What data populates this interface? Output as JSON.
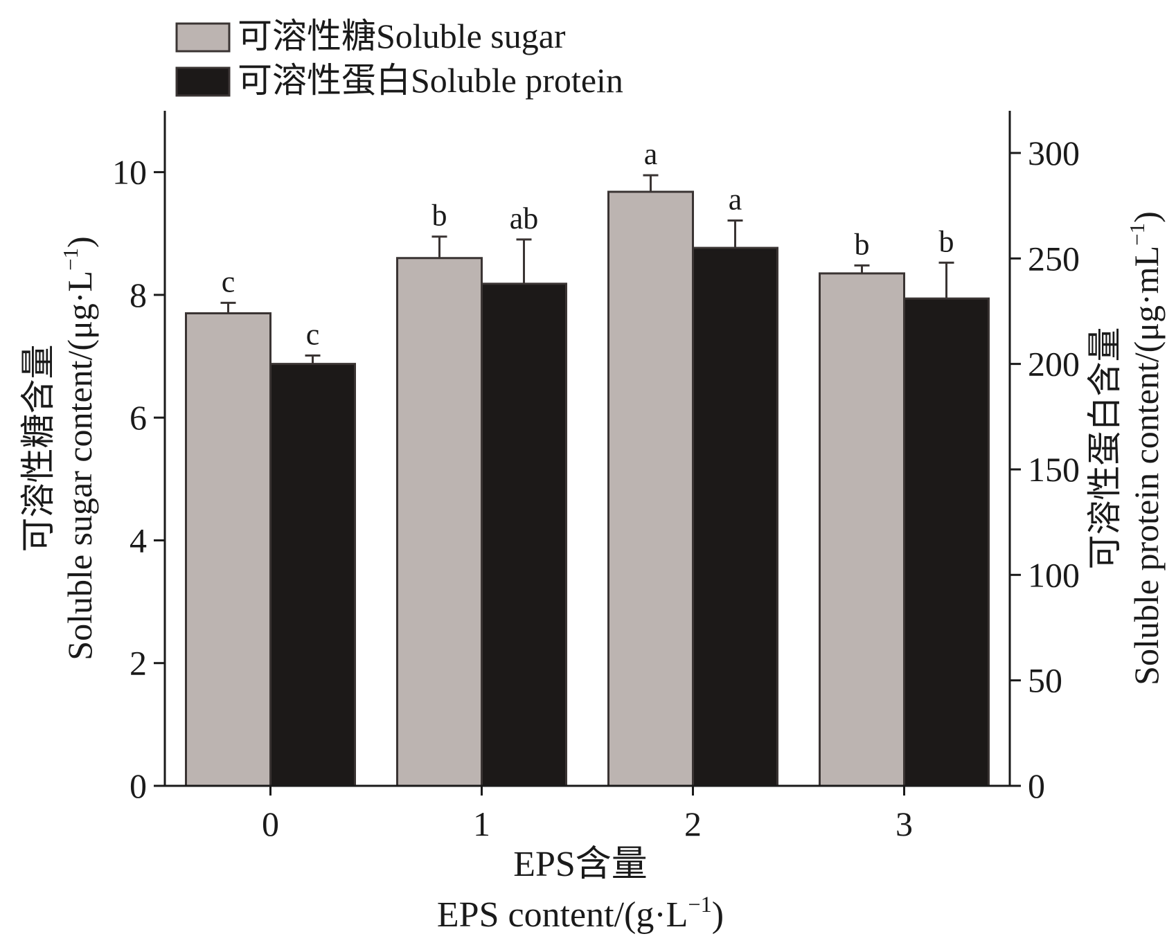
{
  "chart_data": {
    "type": "bar",
    "categories": [
      "0",
      "1",
      "2",
      "3"
    ],
    "xlabel_line1": "EPS含量",
    "xlabel_line2_main": "EPS content/(g·L",
    "xlabel_line2_sup": "−1",
    "xlabel_line2_end": ")",
    "ylabel_left_line1": "可溶性糖含量",
    "ylabel_left_line2_main": "Soluble sugar content/(μg·L",
    "ylabel_left_line2_sup": "−1",
    "ylabel_left_line2_end": ")",
    "ylabel_right_line1": "可溶性蛋白含量",
    "ylabel_right_line2_main": "Soluble protein content/(μg·mL",
    "ylabel_right_line2_sup": "−1",
    "ylabel_right_line2_end": ")",
    "ylim_left": [
      0,
      11
    ],
    "yticks_left": [
      0,
      2,
      4,
      6,
      8,
      10
    ],
    "ylim_right": [
      0,
      320
    ],
    "yticks_right": [
      0,
      50,
      100,
      150,
      200,
      250,
      300
    ],
    "series": [
      {
        "name": "可溶性糖Soluble sugar",
        "axis": "left",
        "color": "#bcb4b1",
        "values": [
          7.7,
          8.6,
          9.68,
          8.35
        ],
        "errors": [
          0.17,
          0.35,
          0.27,
          0.13
        ],
        "labels": [
          "c",
          "b",
          "a",
          "b"
        ]
      },
      {
        "name": "可溶性蛋白Soluble protein",
        "axis": "right",
        "color": "#1c1918",
        "values": [
          200,
          238,
          255,
          231
        ],
        "errors": [
          4,
          21,
          13,
          17
        ],
        "labels": [
          "c",
          "ab",
          "a",
          "b"
        ]
      }
    ],
    "legend_position": "top-left",
    "grid": false
  }
}
